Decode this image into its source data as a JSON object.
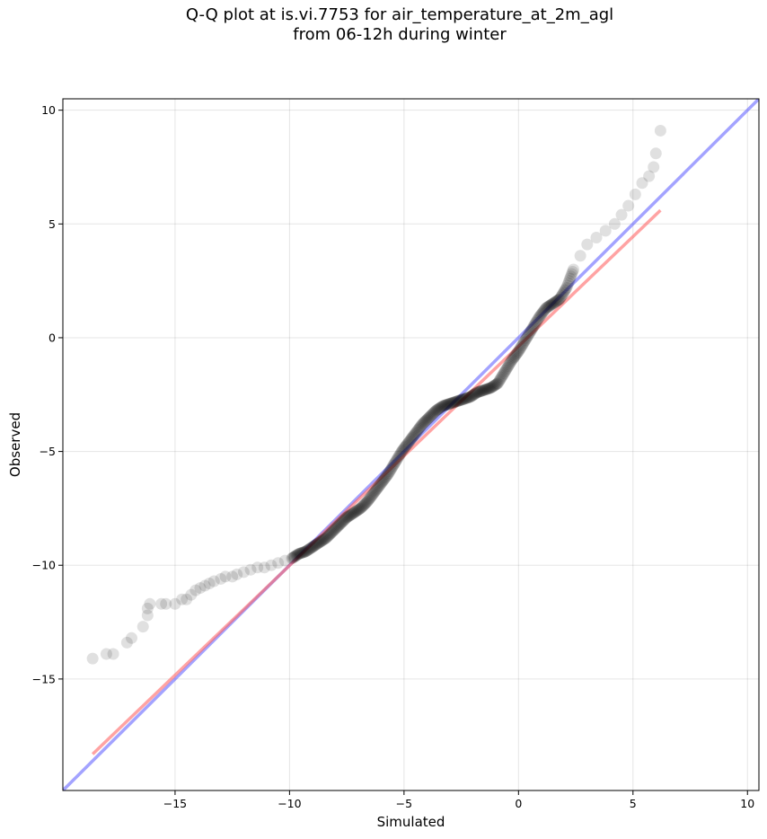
{
  "chart_data": {
    "type": "scatter",
    "title": "Q-Q plot at is.vi.7753 for air_temperature_at_2m_agl",
    "subtitle": "from 06-12h during winter",
    "xlabel": "Simulated",
    "ylabel": "Observed",
    "xlim": [
      -19.9,
      10.5
    ],
    "ylim": [
      -19.9,
      10.5
    ],
    "xticks": [
      -15,
      -10,
      -5,
      0,
      5,
      10
    ],
    "yticks": [
      -15,
      -10,
      -5,
      0,
      5,
      10
    ],
    "xtick_labels": [
      "−15",
      "−10",
      "−5",
      "0",
      "5",
      "10"
    ],
    "ytick_labels": [
      "−15",
      "−10",
      "−5",
      "0",
      "5",
      "10"
    ],
    "grid": true,
    "points": [
      [
        -18.6,
        -14.1
      ],
      [
        -18.0,
        -13.9
      ],
      [
        -17.7,
        -13.9
      ],
      [
        -17.1,
        -13.4
      ],
      [
        -16.9,
        -13.2
      ],
      [
        -16.4,
        -12.7
      ],
      [
        -16.2,
        -12.2
      ],
      [
        -16.2,
        -11.9
      ],
      [
        -16.1,
        -11.7
      ],
      [
        -15.6,
        -11.7
      ],
      [
        -15.4,
        -11.7
      ],
      [
        -15.0,
        -11.7
      ],
      [
        -14.7,
        -11.5
      ],
      [
        -14.5,
        -11.5
      ],
      [
        -14.3,
        -11.3
      ],
      [
        -14.1,
        -11.1
      ],
      [
        -13.9,
        -11.0
      ],
      [
        -13.7,
        -10.9
      ],
      [
        -13.5,
        -10.8
      ],
      [
        -13.3,
        -10.7
      ],
      [
        -13.0,
        -10.6
      ],
      [
        -12.8,
        -10.5
      ],
      [
        -12.5,
        -10.5
      ],
      [
        -12.3,
        -10.4
      ],
      [
        -12.0,
        -10.3
      ],
      [
        -11.7,
        -10.2
      ],
      [
        -11.4,
        -10.1
      ],
      [
        -11.1,
        -10.1
      ],
      [
        -10.8,
        -10.0
      ],
      [
        -10.5,
        -9.9
      ],
      [
        -10.2,
        -9.8
      ],
      [
        -9.9,
        -9.7
      ],
      [
        -9.6,
        -9.5
      ],
      [
        -9.3,
        -9.4
      ],
      [
        -9.0,
        -9.2
      ],
      [
        -8.7,
        -9.0
      ],
      [
        -8.4,
        -8.8
      ],
      [
        -8.1,
        -8.5
      ],
      [
        -7.8,
        -8.2
      ],
      [
        -7.5,
        -7.9
      ],
      [
        -7.2,
        -7.7
      ],
      [
        -6.9,
        -7.5
      ],
      [
        -6.6,
        -7.2
      ],
      [
        -6.3,
        -6.8
      ],
      [
        -6.0,
        -6.4
      ],
      [
        -5.7,
        -6.0
      ],
      [
        -5.4,
        -5.5
      ],
      [
        -5.1,
        -5.0
      ],
      [
        -4.8,
        -4.6
      ],
      [
        -4.5,
        -4.2
      ],
      [
        -4.2,
        -3.8
      ],
      [
        -3.9,
        -3.5
      ],
      [
        -3.6,
        -3.2
      ],
      [
        -3.3,
        -3.0
      ],
      [
        -3.0,
        -2.9
      ],
      [
        -2.7,
        -2.8
      ],
      [
        -2.4,
        -2.7
      ],
      [
        -2.1,
        -2.6
      ],
      [
        -1.8,
        -2.4
      ],
      [
        -1.5,
        -2.3
      ],
      [
        -1.2,
        -2.2
      ],
      [
        -0.9,
        -2.0
      ],
      [
        -0.6,
        -1.5
      ],
      [
        -0.3,
        -1.0
      ],
      [
        0.0,
        -0.6
      ],
      [
        0.3,
        -0.1
      ],
      [
        0.6,
        0.4
      ],
      [
        0.9,
        0.9
      ],
      [
        1.2,
        1.3
      ],
      [
        1.5,
        1.5
      ],
      [
        1.8,
        1.7
      ],
      [
        2.1,
        2.2
      ],
      [
        2.4,
        3.0
      ],
      [
        2.7,
        3.6
      ],
      [
        3.0,
        4.1
      ],
      [
        3.4,
        4.4
      ],
      [
        3.8,
        4.7
      ],
      [
        4.2,
        5.0
      ],
      [
        4.5,
        5.4
      ],
      [
        4.8,
        5.8
      ],
      [
        5.1,
        6.3
      ],
      [
        5.4,
        6.8
      ],
      [
        5.7,
        7.1
      ],
      [
        5.9,
        7.5
      ],
      [
        6.0,
        8.1
      ],
      [
        6.2,
        9.1
      ]
    ],
    "fit_line": {
      "x": [
        -18.6,
        6.2
      ],
      "y": [
        -18.3,
        5.6
      ],
      "color": "#ff6666"
    },
    "reference_line": {
      "x": [
        -19.9,
        10.5
      ],
      "y": [
        -19.9,
        10.5
      ],
      "color": "#6666ff"
    },
    "point_color": "#000000"
  }
}
